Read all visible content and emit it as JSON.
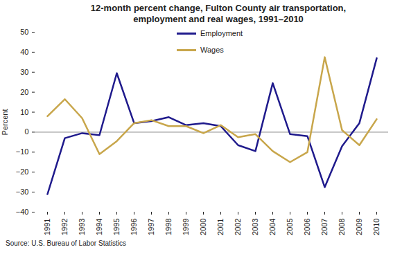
{
  "chart_data": {
    "type": "line",
    "title": "12-month percent change, Fulton County air transportation, employment and real wages, 1991–2010",
    "y_label": "Percent",
    "source": "Source: U.S. Bureau of Labor Statistics",
    "categories": [
      "1991",
      "1992",
      "1993",
      "1994",
      "1995",
      "1996",
      "1997",
      "1998",
      "1999",
      "2000",
      "2001",
      "2002",
      "2003",
      "2004",
      "2005",
      "2006",
      "2007",
      "2008",
      "2009",
      "2010"
    ],
    "series": [
      {
        "name": "Employment",
        "color": "#1F1A8C",
        "values": [
          -31,
          -3,
          -0.5,
          -1.5,
          29.5,
          4.5,
          5.5,
          7.5,
          3.5,
          4.5,
          3,
          -6.5,
          -9.5,
          24.5,
          -1,
          -2,
          -27.5,
          -7,
          4.5,
          37
        ]
      },
      {
        "name": "Wages",
        "color": "#C8A64B",
        "values": [
          8,
          16.5,
          7,
          -11,
          -4.5,
          4.5,
          6,
          3,
          3,
          -0.5,
          3.5,
          -2.5,
          -1,
          -9.5,
          -15,
          -10,
          37.5,
          1,
          -6.5,
          6.5
        ]
      }
    ],
    "ylim": [
      -40,
      50
    ],
    "yticks": [
      -40,
      -30,
      -20,
      -10,
      0,
      10,
      20,
      30,
      40,
      50
    ],
    "grid": false,
    "legend": "top"
  }
}
